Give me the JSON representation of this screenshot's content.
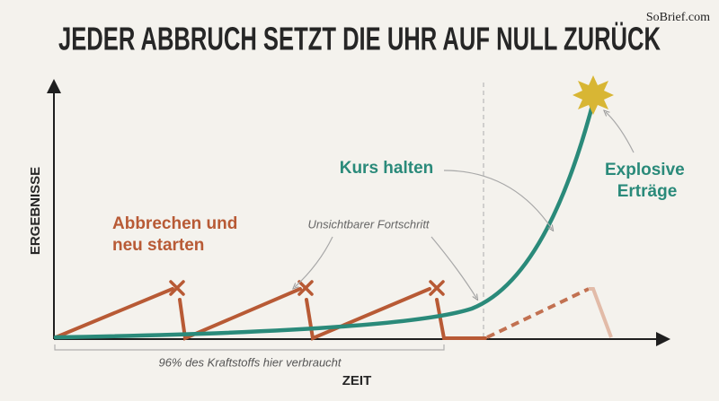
{
  "header": {
    "title": "JEDER ABBRUCH SETZT DIE UHR AUF NULL ZURÜCK",
    "watermark": "SoBrief.com"
  },
  "axes": {
    "y_label": "ERGEBNISSE",
    "x_label": "ZEIT"
  },
  "labels": {
    "restart": [
      "Abbrechen und",
      "neu starten"
    ],
    "invisible_progress": "Unsichtbarer Fortschritt",
    "stay_course": "Kurs halten",
    "explosive": [
      "Explosive",
      "Erträge"
    ],
    "fuel_note": "96% des Kraftstoffs hier verbraucht"
  }
}
